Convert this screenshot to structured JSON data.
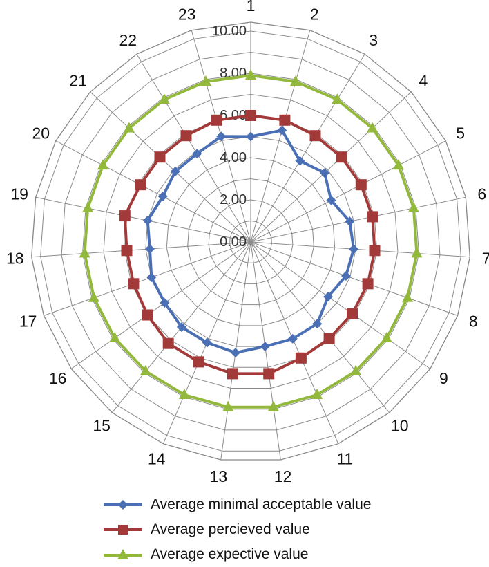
{
  "chart_data": {
    "type": "radar",
    "categories": [
      "1",
      "2",
      "3",
      "4",
      "5",
      "6",
      "7",
      "8",
      "9",
      "10",
      "11",
      "12",
      "13",
      "14",
      "15",
      "16",
      "17",
      "18",
      "19",
      "20",
      "21",
      "22",
      "23"
    ],
    "radial_ticks": [
      "0.00",
      "2.00",
      "4.00",
      "6.00",
      "8.00",
      "10.00"
    ],
    "rmin": 0,
    "rmax": 10,
    "grid": true,
    "legend_position": "bottom",
    "series": [
      {
        "name": "Average minimal acceptable value",
        "color": "#4a6fb5",
        "marker": "diamond",
        "values": [
          5.0,
          5.5,
          4.5,
          4.8,
          4.3,
          4.8,
          4.9,
          4.8,
          4.5,
          5.0,
          5.0,
          5.0,
          5.3,
          5.2,
          5.2,
          5.0,
          5.0,
          4.8,
          5.0,
          4.7,
          4.9,
          4.9,
          5.2
        ]
      },
      {
        "name": "Average percieved value",
        "color": "#a33a3a",
        "marker": "square",
        "values": [
          6.0,
          6.0,
          5.9,
          5.9,
          5.9,
          5.9,
          5.9,
          5.9,
          5.9,
          5.9,
          6.0,
          6.3,
          6.3,
          6.2,
          6.2,
          6.0,
          5.9,
          5.9,
          6.1,
          5.9,
          5.9,
          5.9,
          6.0
        ]
      },
      {
        "name": "Average expective value",
        "color": "#92b83c",
        "marker": "triangle",
        "values": [
          7.9,
          7.9,
          7.9,
          7.9,
          7.9,
          7.9,
          7.9,
          7.9,
          7.9,
          7.9,
          7.9,
          7.9,
          7.9,
          7.9,
          7.9,
          7.9,
          7.9,
          7.9,
          7.9,
          7.9,
          7.9,
          7.9,
          7.9
        ]
      }
    ]
  }
}
